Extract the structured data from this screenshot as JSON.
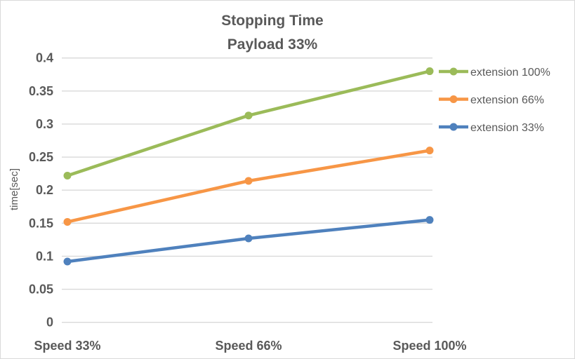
{
  "chart_data": {
    "type": "line",
    "title": "Stopping Time",
    "subtitle": "Payload 33%",
    "xlabel": "",
    "ylabel": "time[sec]",
    "categories": [
      "Speed 33%",
      "Speed 66%",
      "Speed 100%"
    ],
    "ylim": [
      0,
      0.4
    ],
    "yticks": [
      "0",
      "0.05",
      "0.1",
      "0.15",
      "0.2",
      "0.25",
      "0.3",
      "0.35",
      "0.4"
    ],
    "grid": true,
    "legend_position": "right",
    "series": [
      {
        "name": "extension 100%",
        "color": "#9bbb59",
        "values": [
          0.222,
          0.313,
          0.38
        ]
      },
      {
        "name": "extension 66%",
        "color": "#f79646",
        "values": [
          0.152,
          0.214,
          0.26
        ]
      },
      {
        "name": "extension 33%",
        "color": "#4f81bd",
        "values": [
          0.092,
          0.127,
          0.155
        ]
      }
    ]
  }
}
